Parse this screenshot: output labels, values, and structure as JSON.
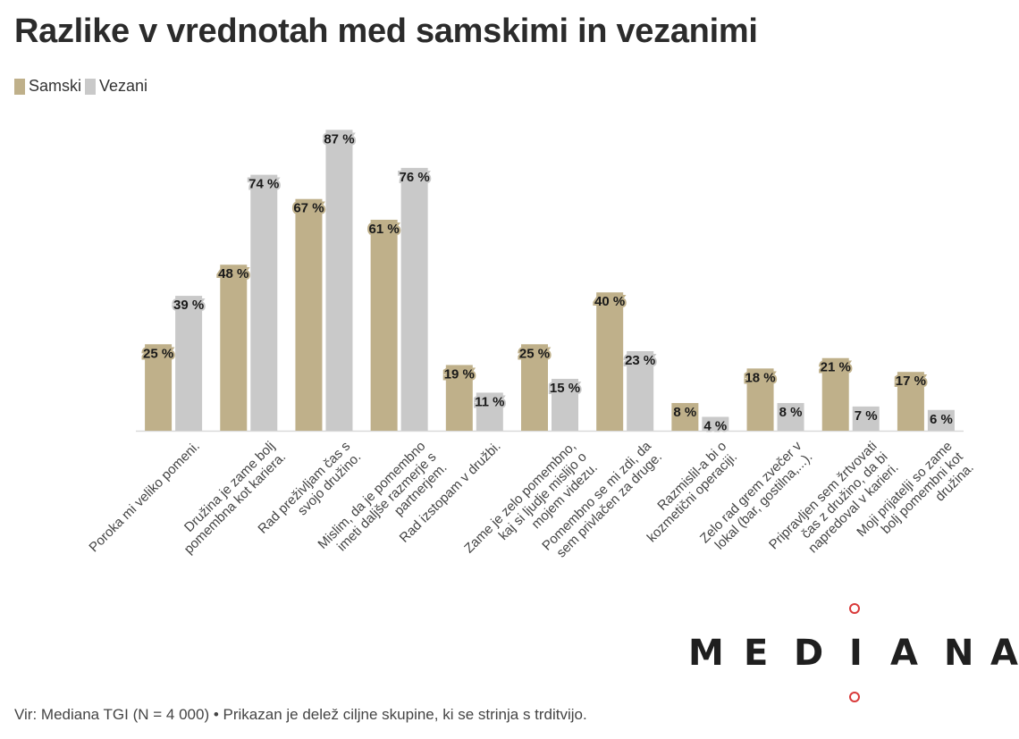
{
  "title": "Razlike v vrednotah med samskimi in vezanimi",
  "legend": {
    "items": [
      {
        "label": "Samski",
        "color": "#bfb08a"
      },
      {
        "label": "Vezani",
        "color": "#c9c9c9"
      }
    ]
  },
  "brand": {
    "letters": [
      "M",
      "E",
      "D",
      "I",
      "A",
      "N",
      "A"
    ],
    "dot_color": "#d93a3a"
  },
  "source": "Vir: Mediana TGI (N = 4 000) • Prikazan je delež ciljne skupine, ki se strinja s trditvijo.",
  "chart_data": {
    "type": "bar",
    "title": "Razlike v vrednotah med samskimi in vezanimi",
    "xlabel": "",
    "ylabel": "",
    "ylim": [
      0,
      100
    ],
    "grid": false,
    "legend_position": "top-left",
    "value_suffix": " %",
    "categories": [
      [
        "Poroka mi veliko pomeni."
      ],
      [
        "Družina je zame bolj",
        "pomembna kot kariera."
      ],
      [
        "Rad preživljam čas s",
        "svojo družino."
      ],
      [
        "Mislim, da je pomembno",
        "imeti daljše razmerje s",
        "partnerjem."
      ],
      [
        "Rad izstopam v družbi."
      ],
      [
        "Zame je zelo pomembno,",
        "kaj si ljudje mislijo o",
        "mojem videzu."
      ],
      [
        "Pomembno se mi zdi, da",
        "sem privlačen za druge."
      ],
      [
        "Razmislil-a bi o",
        "kozmetični operaciji."
      ],
      [
        "Zelo rad grem zvečer v",
        "lokal (bar, gostilna,...)."
      ],
      [
        "Pripravljen sem žrtvovati",
        "čas z družino, da bi",
        "napredoval v karieri."
      ],
      [
        "Moji prijatelji so zame",
        "bolj pomembni kot",
        "družina."
      ]
    ],
    "series": [
      {
        "name": "Samski",
        "color": "#bfb08a",
        "values": [
          25,
          48,
          67,
          61,
          19,
          25,
          40,
          8,
          18,
          21,
          17
        ]
      },
      {
        "name": "Vezani",
        "color": "#c9c9c9",
        "values": [
          39,
          74,
          87,
          76,
          11,
          15,
          23,
          4,
          8,
          7,
          6
        ]
      }
    ]
  }
}
